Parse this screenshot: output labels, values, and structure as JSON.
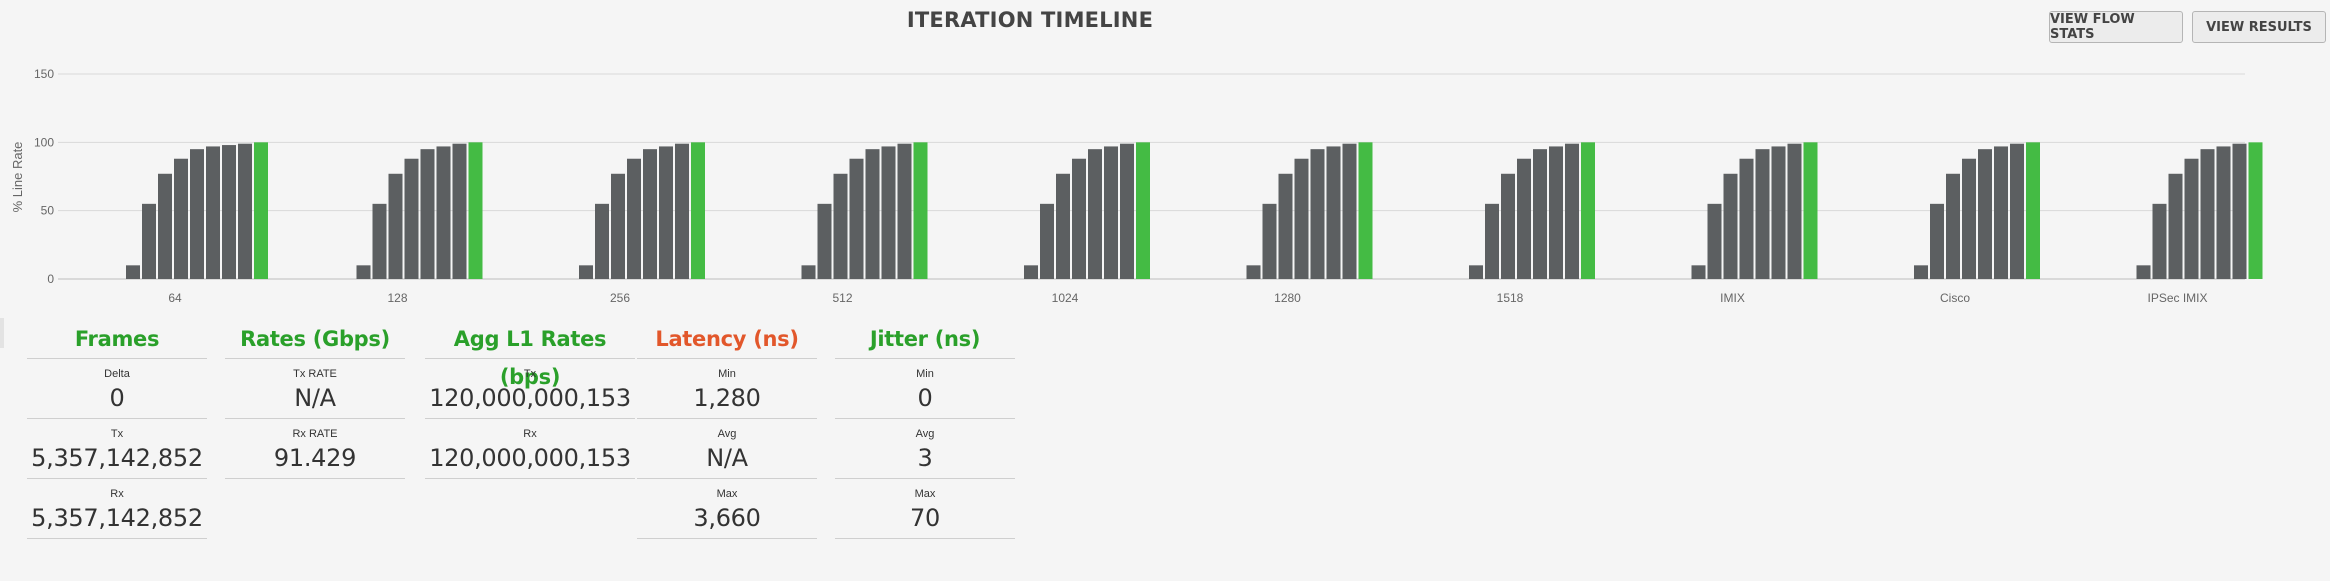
{
  "header": {
    "title": "ITERATION TIMELINE",
    "view_flow_stats_label": "VIEW FLOW STATS",
    "view_results_label": "VIEW RESULTS"
  },
  "colors": {
    "bar_default": "#5c5f61",
    "bar_final": "#44bb44",
    "header_green": "#2aa02a",
    "header_orange": "#e2572b"
  },
  "chart_data": {
    "type": "bar",
    "ylabel": "% Line Rate",
    "ylim": [
      0,
      150
    ],
    "yticks": [
      0,
      50,
      100,
      150
    ],
    "grid": true,
    "groups": [
      {
        "name": "64",
        "values": [
          10,
          55,
          77,
          88,
          95,
          97,
          98,
          99,
          100
        ]
      },
      {
        "name": "128",
        "values": [
          10,
          55,
          77,
          88,
          95,
          97,
          99,
          100
        ]
      },
      {
        "name": "256",
        "values": [
          10,
          55,
          77,
          88,
          95,
          97,
          99,
          100
        ]
      },
      {
        "name": "512",
        "values": [
          10,
          55,
          77,
          88,
          95,
          97,
          99,
          100
        ]
      },
      {
        "name": "1024",
        "values": [
          10,
          55,
          77,
          88,
          95,
          97,
          99,
          100
        ]
      },
      {
        "name": "1280",
        "values": [
          10,
          55,
          77,
          88,
          95,
          97,
          99,
          100
        ]
      },
      {
        "name": "1518",
        "values": [
          10,
          55,
          77,
          88,
          95,
          97,
          99,
          100
        ]
      },
      {
        "name": "IMIX",
        "values": [
          10,
          55,
          77,
          88,
          95,
          97,
          99,
          100
        ]
      },
      {
        "name": "Cisco",
        "values": [
          10,
          55,
          77,
          88,
          95,
          97,
          99,
          100
        ]
      },
      {
        "name": "IPSec IMIX",
        "values": [
          10,
          55,
          77,
          88,
          95,
          97,
          99,
          100
        ]
      }
    ]
  },
  "stats": {
    "frames": {
      "title": "Frames",
      "rows": [
        {
          "label": "Delta",
          "value": "0"
        },
        {
          "label": "Tx",
          "value": "5,357,142,852"
        },
        {
          "label": "Rx",
          "value": "5,357,142,852"
        }
      ]
    },
    "rates": {
      "title": "Rates (Gbps)",
      "rows": [
        {
          "label": "Tx RATE",
          "value": "N/A"
        },
        {
          "label": "Rx RATE",
          "value": "91.429"
        }
      ]
    },
    "agg": {
      "title": "Agg L1 Rates (bps)",
      "rows": [
        {
          "label": "Tx",
          "value": "120,000,000,153"
        },
        {
          "label": "Rx",
          "value": "120,000,000,153"
        }
      ]
    },
    "latency": {
      "title": "Latency (ns)",
      "rows": [
        {
          "label": "Min",
          "value": "1,280"
        },
        {
          "label": "Avg",
          "value": "N/A"
        },
        {
          "label": "Max",
          "value": "3,660"
        }
      ]
    },
    "jitter": {
      "title": "Jitter (ns)",
      "rows": [
        {
          "label": "Min",
          "value": "0"
        },
        {
          "label": "Avg",
          "value": "3"
        },
        {
          "label": "Max",
          "value": "70"
        }
      ]
    }
  }
}
